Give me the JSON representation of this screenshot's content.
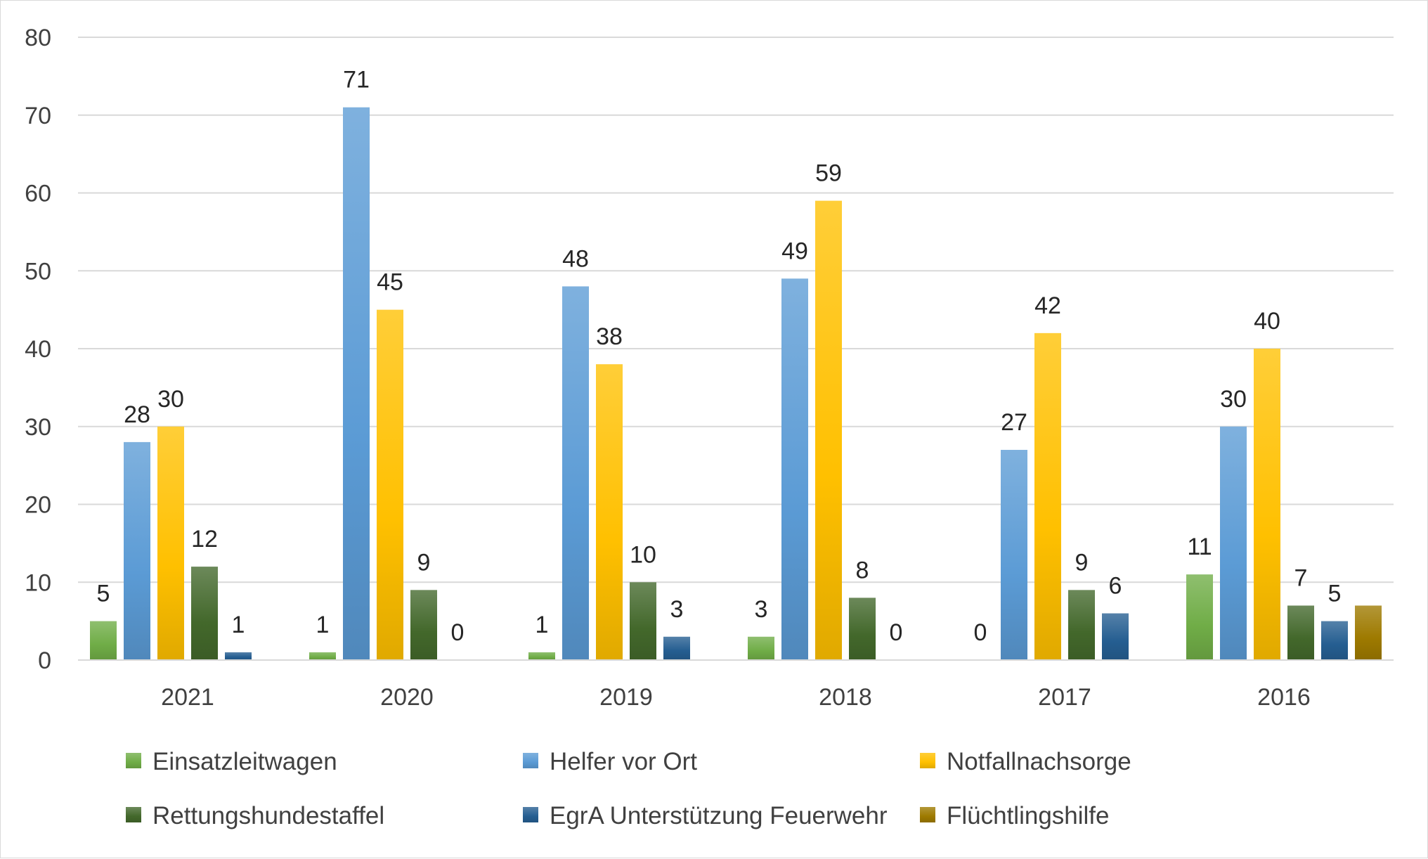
{
  "chart_data": {
    "type": "bar",
    "title": "",
    "xlabel": "",
    "ylabel": "",
    "ylim": [
      0,
      80
    ],
    "yticks": [
      0,
      10,
      20,
      30,
      40,
      50,
      60,
      70,
      80
    ],
    "grid": true,
    "legend_position": "bottom",
    "categories": [
      "2021",
      "2020",
      "2019",
      "2018",
      "2017",
      "2016"
    ],
    "series": [
      {
        "name": "Einsatzleitwagen",
        "color": "#70ad47",
        "values": [
          5,
          1,
          1,
          3,
          0,
          11
        ],
        "labels": [
          "5",
          "1",
          "1",
          "3",
          "0",
          "11"
        ]
      },
      {
        "name": "Helfer vor Ort",
        "color": "#5b9bd5",
        "values": [
          28,
          71,
          48,
          49,
          27,
          30
        ],
        "labels": [
          "28",
          "71",
          "48",
          "49",
          "27",
          "30"
        ]
      },
      {
        "name": "Notfallnachsorge",
        "color": "#ffc000",
        "values": [
          30,
          45,
          38,
          59,
          42,
          40
        ],
        "labels": [
          "30",
          "45",
          "38",
          "59",
          "42",
          "40"
        ]
      },
      {
        "name": "Rettungshundestaffel",
        "color": "#43682b",
        "values": [
          12,
          9,
          10,
          8,
          9,
          7
        ],
        "labels": [
          "12",
          "9",
          "10",
          "8",
          "9",
          "7"
        ]
      },
      {
        "name": "EgrA Unterstützung Feuerwehr",
        "color": "#255e91",
        "values": [
          1,
          0,
          3,
          0,
          6,
          5
        ],
        "labels": [
          "1",
          "0",
          "3",
          "0",
          "6",
          "5"
        ]
      },
      {
        "name": "Flüchtlingshilfe",
        "color": "#9e7a00",
        "values": [
          null,
          null,
          null,
          null,
          null,
          7
        ],
        "labels": [
          "",
          "",
          "",
          "",
          "",
          ""
        ]
      }
    ]
  }
}
